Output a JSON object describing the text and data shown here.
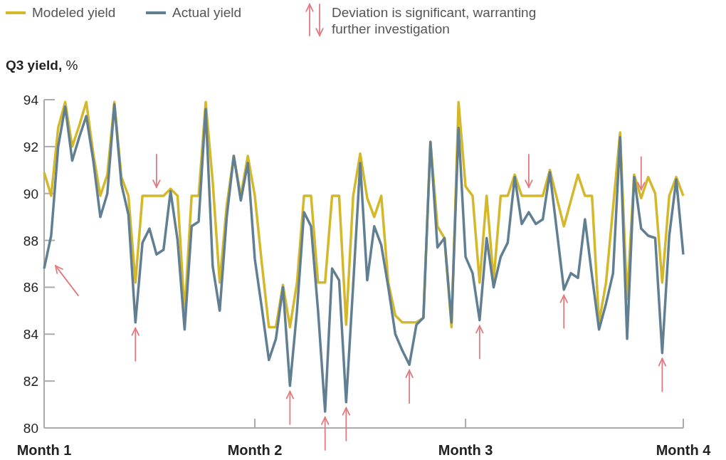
{
  "chart_data": {
    "type": "line",
    "ylabel": "Q3 yield, %",
    "legend": "top left",
    "line_style": "solid",
    "annotations": [
      "Deviation is significant, warranting further investigation"
    ],
    "categories": [
      "Month 1",
      null,
      null,
      null,
      null,
      null,
      null,
      null,
      null,
      null,
      null,
      null,
      null,
      null,
      null,
      null,
      null,
      null,
      null,
      null,
      null,
      null,
      null,
      null,
      null,
      null,
      null,
      null,
      null,
      null,
      "Month 2",
      null,
      null,
      null,
      null,
      null,
      null,
      null,
      null,
      null,
      null,
      null,
      null,
      null,
      null,
      null,
      null,
      null,
      null,
      null,
      null,
      null,
      null,
      null,
      null,
      null,
      null,
      null,
      null,
      null,
      "Month 3",
      null,
      null,
      null,
      null,
      null,
      null,
      null,
      null,
      null,
      null,
      null,
      null,
      null,
      null,
      null,
      null,
      null,
      null,
      null,
      null,
      null,
      null,
      null,
      null,
      null,
      null,
      null,
      null,
      null,
      null,
      "Month 4"
    ],
    "ylim": [
      80,
      94
    ],
    "yticks": [
      80,
      82,
      84,
      86,
      88,
      90,
      92,
      94
    ],
    "series": [
      {
        "name": "Modeled yield",
        "color": "#d4b82a",
        "values": [
          90.9,
          89.9,
          92.8,
          93.9,
          92.0,
          92.9,
          93.9,
          91.7,
          89.9,
          90.8,
          93.9,
          90.7,
          89.9,
          86.2,
          89.9,
          89.9,
          89.9,
          89.9,
          90.2,
          89.9,
          84.9,
          89.9,
          89.9,
          93.9,
          90.5,
          86.2,
          89.5,
          91.6,
          89.9,
          91.6,
          89.9,
          87.0,
          84.3,
          84.3,
          86.1,
          84.3,
          86.2,
          89.9,
          89.9,
          86.2,
          86.2,
          89.9,
          89.9,
          84.4,
          89.9,
          91.7,
          89.8,
          89.0,
          89.9,
          86.2,
          84.8,
          84.5,
          84.5,
          84.5,
          84.7,
          92.2,
          88.6,
          88.1,
          84.3,
          93.9,
          90.3,
          89.9,
          86.2,
          89.9,
          86.3,
          89.9,
          89.9,
          90.8,
          89.9,
          89.9,
          89.9,
          89.9,
          91.0,
          89.8,
          88.6,
          89.7,
          90.8,
          89.9,
          89.9,
          84.5,
          86.2,
          89.4,
          92.6,
          85.5,
          90.8,
          89.8,
          90.7,
          90.0,
          86.2,
          89.9,
          90.7,
          89.9
        ]
      },
      {
        "name": "Actual yield",
        "color": "#617f93",
        "values": [
          86.8,
          88.2,
          92.0,
          93.7,
          91.4,
          92.4,
          93.3,
          91.4,
          89.0,
          90.0,
          93.8,
          90.4,
          89.1,
          84.5,
          87.9,
          88.5,
          87.4,
          87.6,
          90.1,
          88.0,
          84.2,
          88.6,
          88.8,
          93.6,
          86.9,
          85.0,
          89.0,
          91.6,
          89.7,
          91.3,
          87.2,
          85.1,
          82.9,
          83.8,
          86.0,
          81.8,
          85.0,
          89.2,
          88.6,
          85.0,
          80.7,
          86.8,
          86.3,
          81.1,
          86.1,
          91.3,
          86.3,
          88.6,
          87.8,
          86.0,
          84.0,
          83.3,
          82.7,
          84.4,
          84.7,
          92.2,
          87.7,
          88.1,
          84.5,
          92.8,
          87.3,
          86.6,
          84.6,
          88.1,
          86.0,
          87.3,
          87.9,
          90.7,
          88.7,
          89.2,
          88.7,
          88.9,
          90.9,
          88.4,
          85.9,
          86.6,
          86.4,
          88.9,
          86.5,
          84.2,
          85.3,
          86.6,
          92.4,
          83.8,
          90.7,
          88.5,
          88.2,
          88.1,
          83.2,
          88.2,
          90.6,
          87.4
        ]
      }
    ]
  }
}
